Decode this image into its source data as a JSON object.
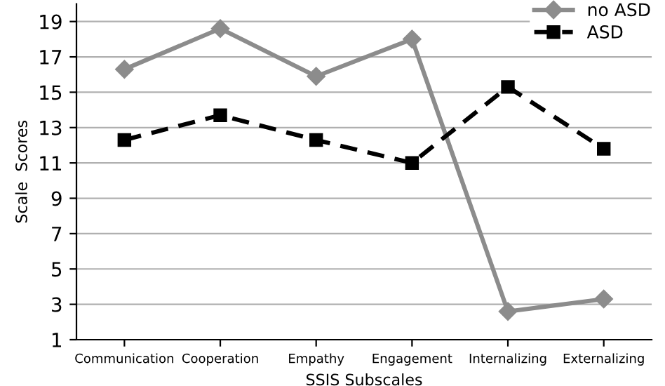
{
  "chart_data": {
    "type": "line",
    "xlabel": "SSIS Subscales",
    "ylabel": "Scale  Scores",
    "categories": [
      "Communication",
      "Cooperation",
      "Empathy",
      "Engagement",
      "Internalizing",
      "Externalizing"
    ],
    "series": [
      {
        "name": "no ASD",
        "color": "#8c8c8c",
        "marker": "diamond",
        "line_style": "solid",
        "values": [
          16.3,
          18.6,
          15.9,
          18.0,
          2.6,
          3.3
        ]
      },
      {
        "name": "ASD",
        "color": "#000000",
        "marker": "square",
        "line_style": "dashed",
        "values": [
          12.3,
          13.7,
          12.3,
          11.0,
          15.3,
          11.8
        ]
      }
    ],
    "ylim": [
      1,
      20
    ],
    "yticks": [
      1,
      3,
      5,
      7,
      9,
      11,
      13,
      15,
      17,
      19
    ],
    "grid": "y",
    "legend": "top right"
  }
}
